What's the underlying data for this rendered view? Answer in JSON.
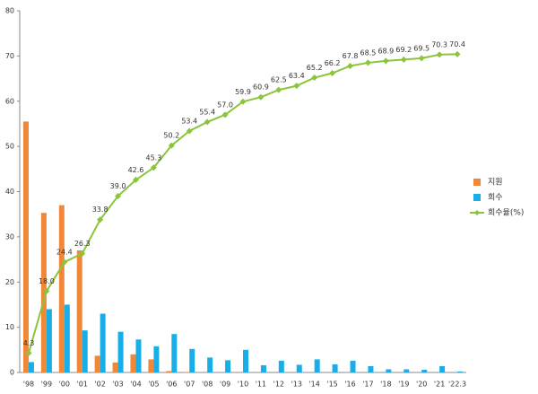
{
  "chart_data": {
    "type": "bar",
    "categories": [
      "'98",
      "'99",
      "'00",
      "'01",
      "'02",
      "'03",
      "'04",
      "'05",
      "'06",
      "'07",
      "'08",
      "'09",
      "'10",
      "'11",
      "'12",
      "'13",
      "'14",
      "'15",
      "'16",
      "'17",
      "'18",
      "'19",
      "'20",
      "'21",
      "'22.3"
    ],
    "series": [
      {
        "name": "지원",
        "type": "bar",
        "color": "#f0883a",
        "values": [
          55.5,
          35.3,
          37,
          27,
          3.7,
          2.2,
          4,
          2.9,
          0.3,
          0.1,
          0,
          0,
          0,
          0,
          0,
          0,
          0,
          0,
          0,
          0,
          0,
          0,
          0,
          0,
          0
        ]
      },
      {
        "name": "회수",
        "type": "bar",
        "color": "#1aaee8",
        "values": [
          2.3,
          14,
          15,
          9.3,
          13,
          9,
          7.3,
          5.8,
          8.5,
          5.2,
          3.3,
          2.7,
          5,
          1.6,
          2.6,
          1.7,
          2.9,
          1.8,
          2.6,
          1.4,
          0.7,
          0.7,
          0.6,
          1.4,
          0.2
        ]
      },
      {
        "name": "회수율(%)",
        "type": "line",
        "color": "#8cc43c",
        "values": [
          4.3,
          18,
          24.4,
          26.3,
          33.8,
          39,
          42.6,
          45.3,
          50.2,
          53.4,
          55.4,
          57,
          59.9,
          60.9,
          62.5,
          63.4,
          65.2,
          66.2,
          67.8,
          68.5,
          68.9,
          69.2,
          69.5,
          70.3,
          70.4
        ],
        "value_labels": [
          "4.3",
          "18.0",
          "24.4",
          "26.3",
          "33.8",
          "39.0",
          "42.6",
          "45.3",
          "50.2",
          "53.4",
          "55.4",
          "57.0",
          "59.9",
          "60.9",
          "62.5",
          "63.4",
          "65.2",
          "66.2",
          "67.8",
          "68.5",
          "68.9",
          "69.2",
          "69.5",
          "70.3",
          "70.4"
        ]
      }
    ],
    "ylim": [
      0,
      80
    ],
    "yticks": [
      0,
      10,
      20,
      30,
      40,
      50,
      60,
      70,
      80
    ],
    "grid": false,
    "legend": "right"
  }
}
